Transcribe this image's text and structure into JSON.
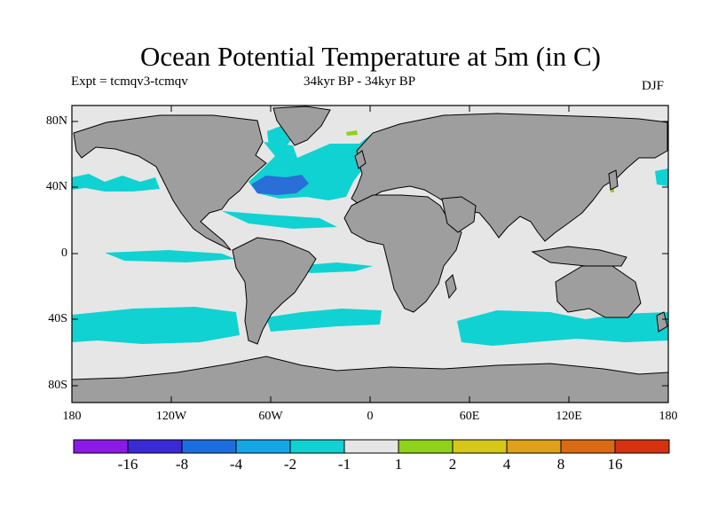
{
  "title": "Ocean Potential Temperature at 5m (in C)",
  "subtitle": {
    "experiment": "Expt = tcmqv3-tcmqv",
    "period": "34kyr BP - 34kyr BP",
    "season": "DJF"
  },
  "map": {
    "lat_labels": [
      "80N",
      "40N",
      "0",
      "40S",
      "80S"
    ],
    "lon_labels": [
      "180",
      "120W",
      "60W",
      "0",
      "60E",
      "120E",
      "180"
    ],
    "colors": {
      "land": "#9e9e9e",
      "ocean_neutral": "#e6e6e6",
      "cool_anomaly": "#10d2d2",
      "strong_cool_anomaly": "#2a6ed8",
      "warm_anomaly": "#8fd21a"
    }
  },
  "colorbar": {
    "labels": [
      "-16",
      "-8",
      "-4",
      "-2",
      "-1",
      "1",
      "2",
      "4",
      "8",
      "16"
    ],
    "colors": [
      "#8c1ae6",
      "#3a2ad6",
      "#1a6ee0",
      "#14a6e6",
      "#10d2d2",
      "#e6e6e6",
      "#8fd21a",
      "#d6c818",
      "#e0a01a",
      "#dc6a12",
      "#d63210"
    ]
  }
}
